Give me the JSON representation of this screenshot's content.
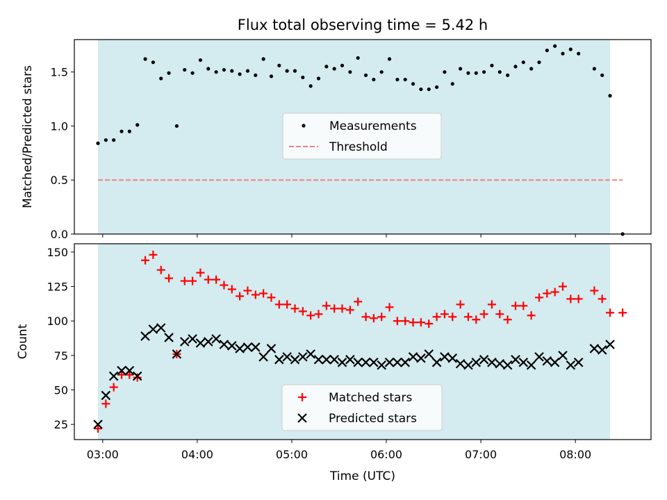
{
  "chart_data": [
    {
      "type": "scatter",
      "title": "Flux total observing time = 5.42 h",
      "xlabel": "",
      "ylabel": "Matched/Predicted stars",
      "xlim": [
        "02:42",
        "08:48"
      ],
      "ylim": [
        0,
        1.8
      ],
      "yticks": [
        "0.0",
        "0.5",
        "1.0",
        "1.5"
      ],
      "xticks": [
        "03:00",
        "04:00",
        "05:00",
        "06:00",
        "07:00",
        "08:00"
      ],
      "shaded_span": [
        "02:57",
        "08:22"
      ],
      "legend": {
        "position": "center",
        "entries": [
          "Measurements",
          "Threshold"
        ]
      },
      "threshold": {
        "value": 0.5,
        "x_range": [
          "02:57",
          "08:30"
        ],
        "color": "#f08080"
      },
      "series": [
        {
          "name": "Measurements",
          "x": [
            "02:57",
            "03:02",
            "03:07",
            "03:12",
            "03:17",
            "03:22",
            "03:27",
            "03:32",
            "03:37",
            "03:42",
            "03:47",
            "03:52",
            "03:57",
            "04:02",
            "04:07",
            "04:12",
            "04:17",
            "04:22",
            "04:27",
            "04:32",
            "04:37",
            "04:42",
            "04:47",
            "04:52",
            "04:57",
            "05:02",
            "05:07",
            "05:12",
            "05:17",
            "05:22",
            "05:27",
            "05:32",
            "05:37",
            "05:42",
            "05:47",
            "05:52",
            "05:57",
            "06:02",
            "06:07",
            "06:12",
            "06:17",
            "06:22",
            "06:27",
            "06:32",
            "06:37",
            "06:42",
            "06:47",
            "06:52",
            "06:57",
            "07:02",
            "07:07",
            "07:12",
            "07:17",
            "07:22",
            "07:27",
            "07:32",
            "07:37",
            "07:42",
            "07:47",
            "07:52",
            "07:57",
            "08:02",
            "08:12",
            "08:17",
            "08:22",
            "08:30"
          ],
          "y": [
            0.84,
            0.87,
            0.87,
            0.95,
            0.95,
            1.01,
            1.62,
            1.59,
            1.44,
            1.49,
            1.0,
            1.52,
            1.49,
            1.61,
            1.53,
            1.5,
            1.52,
            1.51,
            1.48,
            1.51,
            1.47,
            1.62,
            1.46,
            1.56,
            1.51,
            1.51,
            1.45,
            1.37,
            1.44,
            1.55,
            1.53,
            1.56,
            1.5,
            1.63,
            1.47,
            1.43,
            1.5,
            1.62,
            1.43,
            1.43,
            1.39,
            1.34,
            1.34,
            1.36,
            1.5,
            1.39,
            1.53,
            1.49,
            1.49,
            1.5,
            1.56,
            1.5,
            1.47,
            1.55,
            1.59,
            1.53,
            1.59,
            1.7,
            1.74,
            1.67,
            1.71,
            1.67,
            1.53,
            1.47,
            1.28,
            0.0
          ],
          "marker": "dot",
          "color": "#000000"
        }
      ]
    },
    {
      "type": "scatter",
      "title": "",
      "xlabel": "Time (UTC)",
      "ylabel": "Count",
      "xlim": [
        "02:42",
        "08:48"
      ],
      "ylim": [
        14,
        156
      ],
      "yticks": [
        "25",
        "50",
        "75",
        "100",
        "125",
        "150"
      ],
      "xticks": [
        "03:00",
        "04:00",
        "05:00",
        "06:00",
        "07:00",
        "08:00"
      ],
      "shaded_span": [
        "02:57",
        "08:22"
      ],
      "legend": {
        "position": "bottom-center",
        "entries": [
          "Matched stars",
          "Predicted stars"
        ]
      },
      "series": [
        {
          "name": "Matched stars",
          "marker": "plus",
          "color": "#ff0000",
          "x": [
            "02:57",
            "03:02",
            "03:07",
            "03:12",
            "03:17",
            "03:22",
            "03:27",
            "03:32",
            "03:37",
            "03:42",
            "03:47",
            "03:52",
            "03:57",
            "04:02",
            "04:07",
            "04:12",
            "04:17",
            "04:22",
            "04:27",
            "04:32",
            "04:37",
            "04:42",
            "04:47",
            "04:52",
            "04:57",
            "05:02",
            "05:07",
            "05:12",
            "05:17",
            "05:22",
            "05:27",
            "05:32",
            "05:37",
            "05:42",
            "05:47",
            "05:52",
            "05:57",
            "06:02",
            "06:07",
            "06:12",
            "06:17",
            "06:22",
            "06:27",
            "06:32",
            "06:37",
            "06:42",
            "06:47",
            "06:52",
            "06:57",
            "07:02",
            "07:07",
            "07:12",
            "07:17",
            "07:22",
            "07:27",
            "07:32",
            "07:37",
            "07:42",
            "07:47",
            "07:52",
            "07:57",
            "08:02",
            "08:12",
            "08:17",
            "08:22",
            "08:30"
          ],
          "y": [
            22,
            40,
            52,
            61,
            61,
            59,
            144,
            148,
            137,
            131,
            76,
            129,
            129,
            135,
            130,
            130,
            126,
            123,
            118,
            122,
            119,
            120,
            117,
            112,
            112,
            109,
            107,
            104,
            105,
            111,
            109,
            109,
            108,
            114,
            103,
            102,
            103,
            110,
            100,
            100,
            99,
            99,
            98,
            103,
            105,
            103,
            112,
            103,
            101,
            105,
            112,
            105,
            101,
            111,
            111,
            104,
            117,
            120,
            121,
            125,
            116,
            116,
            122,
            116,
            106,
            106
          ]
        },
        {
          "name": "Predicted stars",
          "marker": "cross",
          "color": "#000000",
          "x": [
            "02:57",
            "03:02",
            "03:07",
            "03:12",
            "03:17",
            "03:22",
            "03:27",
            "03:32",
            "03:37",
            "03:42",
            "03:47",
            "03:52",
            "03:57",
            "04:02",
            "04:07",
            "04:12",
            "04:17",
            "04:22",
            "04:27",
            "04:32",
            "04:37",
            "04:42",
            "04:47",
            "04:52",
            "04:57",
            "05:02",
            "05:07",
            "05:12",
            "05:17",
            "05:22",
            "05:27",
            "05:32",
            "05:37",
            "05:42",
            "05:47",
            "05:52",
            "05:57",
            "06:02",
            "06:07",
            "06:12",
            "06:17",
            "06:22",
            "06:27",
            "06:32",
            "06:37",
            "06:42",
            "06:47",
            "06:52",
            "06:57",
            "07:02",
            "07:07",
            "07:12",
            "07:17",
            "07:22",
            "07:27",
            "07:32",
            "07:37",
            "07:42",
            "07:47",
            "07:52",
            "07:57",
            "08:02",
            "08:12",
            "08:17",
            "08:22"
          ],
          "y": [
            25,
            46,
            60,
            64,
            64,
            60,
            89,
            94,
            95,
            88,
            76,
            85,
            87,
            84,
            85,
            87,
            83,
            82,
            80,
            81,
            81,
            74,
            80,
            72,
            74,
            72,
            74,
            76,
            72,
            72,
            72,
            70,
            72,
            70,
            70,
            70,
            68,
            70,
            70,
            70,
            74,
            73,
            76,
            70,
            74,
            73,
            69,
            68,
            70,
            72,
            70,
            69,
            68,
            72,
            70,
            68,
            74,
            71,
            70,
            75,
            68,
            70,
            80,
            79,
            83
          ]
        }
      ]
    }
  ]
}
